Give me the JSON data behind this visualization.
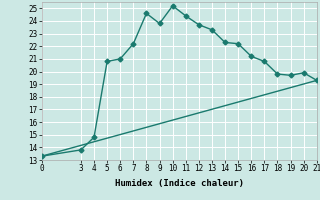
{
  "title": "",
  "xlabel": "Humidex (Indice chaleur)",
  "bg_color": "#cce8e4",
  "grid_color": "#ffffff",
  "line_color": "#1a7a6e",
  "xlim": [
    0,
    21
  ],
  "ylim": [
    13,
    25.5
  ],
  "xticks": [
    0,
    3,
    4,
    5,
    6,
    7,
    8,
    9,
    10,
    11,
    12,
    13,
    14,
    15,
    16,
    17,
    18,
    19,
    20,
    21
  ],
  "yticks": [
    13,
    14,
    15,
    16,
    17,
    18,
    19,
    20,
    21,
    22,
    23,
    24,
    25
  ],
  "curve_x": [
    0,
    3,
    4,
    5,
    6,
    7,
    8,
    9,
    10,
    11,
    12,
    13,
    14,
    15,
    16,
    17,
    18,
    19,
    20,
    21
  ],
  "curve_y": [
    13.3,
    13.8,
    14.8,
    20.8,
    21.0,
    22.2,
    24.6,
    23.8,
    25.2,
    24.4,
    23.7,
    23.3,
    22.3,
    22.2,
    21.2,
    20.8,
    19.8,
    19.7,
    19.9,
    19.3
  ],
  "line_x": [
    0,
    21
  ],
  "line_y": [
    13.3,
    19.3
  ],
  "marker_style": "D",
  "marker_size": 2.5,
  "line_width": 1.0,
  "font_size": 6.5
}
